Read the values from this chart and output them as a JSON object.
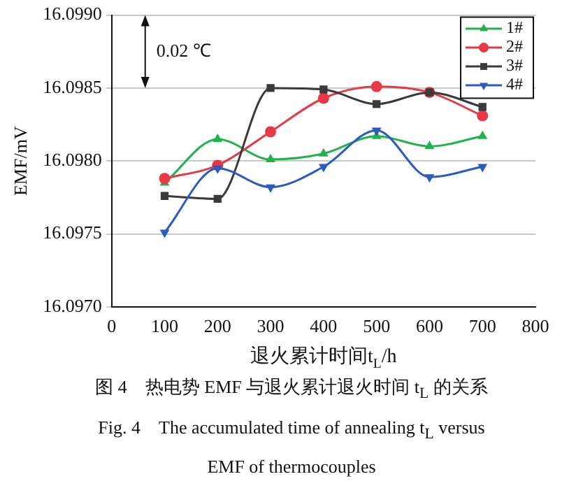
{
  "chart_data": {
    "type": "line",
    "xlabel": "退火累计时间t$_{L}$/h",
    "ylabel": "EMF/mV",
    "x": [
      100,
      200,
      300,
      400,
      500,
      600,
      700
    ],
    "series": [
      {
        "name": "1#",
        "color": "#22b14c",
        "marker": "triangle",
        "values": [
          16.09785,
          16.09815,
          16.09801,
          16.09805,
          16.09817,
          16.0981,
          16.09817
        ]
      },
      {
        "name": "2#",
        "color": "#e63946",
        "marker": "circle",
        "values": [
          16.09788,
          16.09797,
          16.0982,
          16.09843,
          16.09851,
          16.09847,
          16.09831
        ]
      },
      {
        "name": "3#",
        "color": "#3a3a3a",
        "marker": "square",
        "values": [
          16.09776,
          16.09774,
          16.0985,
          16.09849,
          16.09839,
          16.09847,
          16.09837
        ]
      },
      {
        "name": "4#",
        "color": "#2a5cc0",
        "marker": "triangle-down",
        "values": [
          16.09751,
          16.09795,
          16.09782,
          16.09796,
          16.09821,
          16.09789,
          16.09796
        ]
      }
    ],
    "xlim": [
      0,
      800
    ],
    "xticks": [
      0,
      100,
      200,
      300,
      400,
      500,
      600,
      700,
      800
    ],
    "ylim": [
      16.097,
      16.099
    ],
    "yticks": [
      {
        "value": 16.097,
        "label": "16.0970"
      },
      {
        "value": 16.0975,
        "label": "16.0975"
      },
      {
        "value": 16.098,
        "label": "16.0980"
      },
      {
        "value": 16.0985,
        "label": "16.0985"
      },
      {
        "value": 16.099,
        "label": "16.0990"
      }
    ],
    "grid": "y",
    "legend": "top right",
    "line_style": "solid",
    "annotations": [
      "0.02 ℃",
      "图 4　热电势 EMF 与退火累计退火时间 t$_{L}$ 的关系",
      "Fig. 4　The accumulated time of annealing t$_{L}$ versus",
      "EMF of thermocouples"
    ]
  }
}
